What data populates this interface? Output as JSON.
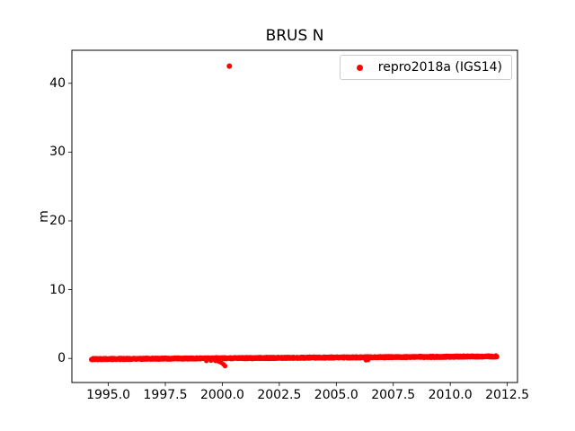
{
  "chart_data": {
    "type": "scatter",
    "title": "BRUS N",
    "xlabel": "",
    "ylabel": "m",
    "grid": false,
    "background": "#ffffff",
    "axis_color": "#000000",
    "xlim": [
      1993.4,
      2012.95
    ],
    "ylim": [
      -3.5,
      44.8
    ],
    "x_ticks": [
      1995.0,
      1997.5,
      2000.0,
      2002.5,
      2005.0,
      2007.5,
      2010.0,
      2012.5
    ],
    "x_tick_labels": [
      "1995.0",
      "1997.5",
      "2000.0",
      "2002.5",
      "2005.0",
      "2007.5",
      "2010.0",
      "2012.5"
    ],
    "y_ticks": [
      0,
      10,
      20,
      30,
      40
    ],
    "y_tick_labels": [
      "0",
      "10",
      "20",
      "30",
      "40"
    ],
    "legend": {
      "position": "upper right",
      "entries": [
        {
          "label": "repro2018a (IGS14)",
          "color": "#ff0000",
          "marker": "dot"
        }
      ]
    },
    "series": [
      {
        "name": "repro2018a (IGS14)",
        "color": "#ff0000",
        "marker": "dot",
        "marker_size_px": 2.6,
        "band": {
          "comment": "dense daily solutions forming a near-zero band with slow upward drift",
          "x_start": 1994.25,
          "x_end": 2012.05,
          "step": 0.01,
          "y_start": -0.1,
          "y_end": 0.3,
          "noise": 0.12
        },
        "anomalies": [
          [
            1999.3,
            -0.35
          ],
          [
            1999.5,
            -0.3
          ],
          [
            1999.7,
            -0.35
          ],
          [
            1999.85,
            -0.45
          ],
          [
            1999.95,
            -0.6
          ],
          [
            2000.05,
            -0.85
          ],
          [
            2000.12,
            -1.1
          ],
          [
            2006.3,
            -0.25
          ],
          [
            2006.4,
            -0.2
          ]
        ],
        "outliers": [
          [
            2000.31,
            42.5
          ]
        ]
      }
    ]
  }
}
